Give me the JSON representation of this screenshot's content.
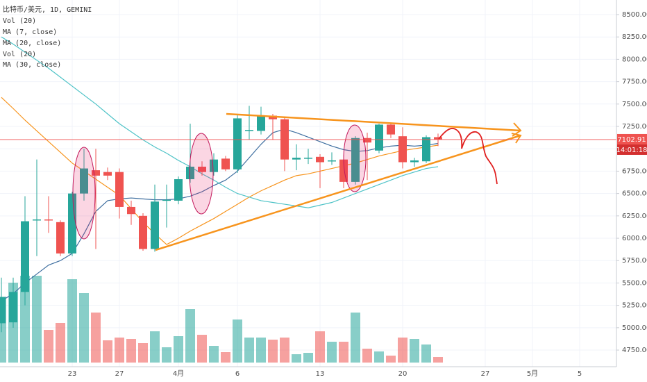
{
  "chart_data": {
    "type": "candlestick",
    "title": "比特币/美元, 1D, GEMINI",
    "indicators": [
      "Vol (20)",
      "MA (7, close)",
      "MA (20, close)",
      "Vol (20)",
      "MA (30, close)"
    ],
    "categories": [
      null,
      null,
      null,
      null,
      null,
      null,
      "23",
      null,
      null,
      null,
      "27",
      null,
      null,
      null,
      null,
      "4月",
      null,
      null,
      null,
      null,
      "6",
      null,
      null,
      null,
      null,
      null,
      null,
      "13",
      null,
      null,
      null,
      null,
      null,
      null,
      "20",
      null,
      null,
      null,
      null,
      null,
      null,
      "27",
      null,
      null,
      null,
      "5月",
      null,
      null,
      null,
      "5",
      null,
      null,
      null
    ],
    "open": [
      5050,
      5060,
      5400,
      6200,
      6210,
      6180,
      5830,
      6500,
      6760,
      6740,
      6740,
      6350,
      6250,
      5880,
      6420,
      6420,
      6660,
      6800,
      6740,
      6890,
      6770,
      7200,
      7200,
      7370,
      7330,
      6880,
      6890,
      6910,
      6860,
      6880,
      6630,
      7120,
      6980,
      7270,
      7140,
      6850,
      6860,
      7130,
      null,
      null,
      null,
      null,
      null,
      null,
      null,
      null,
      null,
      null,
      null,
      null,
      null,
      null,
      null
    ],
    "high": [
      5560,
      5560,
      6470,
      6880,
      6470,
      6200,
      6520,
      7000,
      7000,
      6790,
      6780,
      6420,
      6280,
      6600,
      6600,
      6690,
      7280,
      6860,
      6950,
      6920,
      7390,
      7480,
      7470,
      7390,
      7360,
      7050,
      7000,
      6940,
      6960,
      6930,
      7140,
      7180,
      7280,
      7290,
      7240,
      6900,
      7150,
      7170,
      null,
      null,
      null,
      null,
      null,
      null,
      null,
      null,
      null,
      null,
      null,
      null,
      null,
      null,
      null
    ],
    "low": [
      4950,
      5000,
      5250,
      5800,
      6060,
      5800,
      5800,
      6420,
      5880,
      6650,
      6220,
      6150,
      5860,
      5850,
      6120,
      6380,
      6620,
      6700,
      6700,
      6750,
      6730,
      7100,
      7160,
      7100,
      6750,
      6760,
      6830,
      6560,
      6820,
      6560,
      6600,
      6650,
      6950,
      7120,
      6780,
      6800,
      6840,
      7030,
      null,
      null,
      null,
      null,
      null,
      null,
      null,
      null,
      null,
      null,
      null,
      null,
      null,
      null,
      null
    ],
    "close": [
      5340,
      5400,
      6190,
      6210,
      6200,
      5830,
      6500,
      6780,
      6700,
      6700,
      6350,
      6270,
      5880,
      6410,
      6430,
      6660,
      6800,
      6740,
      6880,
      6770,
      7340,
      7210,
      7370,
      7330,
      6880,
      6900,
      6900,
      6850,
      6870,
      6630,
      7120,
      7070,
      7270,
      7160,
      6850,
      6870,
      7130,
      7102.91,
      null,
      null,
      null,
      null,
      null,
      null,
      null,
      null,
      null,
      null,
      null,
      null,
      null,
      null,
      null
    ],
    "up_color": "#26a69a",
    "down_color": "#ef5350",
    "volume": {
      "values": [
        95,
        115,
        125,
        125,
        47,
        57,
        120,
        100,
        72,
        32,
        36,
        34,
        28,
        45,
        22,
        38,
        77,
        40,
        24,
        15,
        62,
        36,
        36,
        33,
        36,
        12,
        14,
        45,
        30,
        30,
        72,
        20,
        16,
        10,
        36,
        34,
        26,
        8,
        null,
        null,
        null,
        null,
        null,
        null,
        null,
        null,
        null,
        null,
        null,
        null,
        null,
        null,
        null
      ]
    },
    "series": [
      {
        "color": "#3f6fa0",
        "values": [
          5300,
          5380,
          5500,
          5600,
          5700,
          5750,
          5830,
          6050,
          6300,
          6420,
          6440,
          6450,
          6440,
          6430,
          6430,
          6440,
          6470,
          6520,
          6590,
          6650,
          6750,
          6900,
          7050,
          7180,
          7220,
          7180,
          7130,
          7080,
          7030,
          6990,
          6970,
          6980,
          7010,
          7030,
          7040,
          7030,
          7040,
          7060,
          null,
          null,
          null,
          null,
          null,
          null,
          null,
          null,
          null,
          null,
          null,
          null,
          null,
          null,
          null
        ]
      },
      {
        "color": "#f7941d",
        "values": [
          7575,
          7450,
          7320,
          7200,
          7080,
          6960,
          6840,
          6750,
          6660,
          6570,
          6480,
          6330,
          6180,
          6050,
          5930,
          6000,
          6080,
          6150,
          6220,
          6300,
          6380,
          6460,
          6530,
          6590,
          6650,
          6700,
          6720,
          6750,
          6780,
          6810,
          6840,
          6880,
          6920,
          6950,
          6980,
          7000,
          7020,
          7040,
          null,
          null,
          null,
          null,
          null,
          null,
          null,
          null,
          null,
          null,
          null,
          null,
          null,
          null,
          null
        ]
      },
      {
        "color": "#4fc3c7",
        "values": [
          8250,
          8170,
          8080,
          7990,
          7900,
          7800,
          7700,
          7600,
          7500,
          7390,
          7280,
          7190,
          7100,
          7020,
          6950,
          6870,
          6800,
          6720,
          6650,
          6570,
          6500,
          6460,
          6420,
          6400,
          6380,
          6360,
          6340,
          6370,
          6400,
          6450,
          6500,
          6550,
          6600,
          6650,
          6700,
          6740,
          6780,
          6800,
          null,
          null,
          null,
          null,
          null,
          null,
          null,
          null,
          null,
          null,
          null,
          null,
          null,
          null,
          null
        ]
      }
    ],
    "last_price": 7102.91,
    "countdown": "14:01:18",
    "ylim": [
      4564,
      8663
    ],
    "yticks": [
      {
        "value": 4750,
        "label": "4750.00"
      },
      {
        "value": 5000,
        "label": "5000.00"
      },
      {
        "value": 5250,
        "label": "5250.00"
      },
      {
        "value": 5500,
        "label": "5500.00"
      },
      {
        "value": 5750,
        "label": "5750.00"
      },
      {
        "value": 6000,
        "label": "6000.00"
      },
      {
        "value": 6250,
        "label": "6250.00"
      },
      {
        "value": 6500,
        "label": "6500.00"
      },
      {
        "value": 6750,
        "label": "6750.00"
      },
      {
        "value": 7000,
        "label": "7000.00"
      },
      {
        "value": 7250,
        "label": "7250.00"
      },
      {
        "value": 7500,
        "label": "7500.00"
      },
      {
        "value": 7750,
        "label": "7750.00"
      },
      {
        "value": 8000,
        "label": "8000.00"
      },
      {
        "value": 8250,
        "label": "8250.00"
      },
      {
        "value": 8500,
        "label": "8500.00"
      }
    ],
    "grid": true
  }
}
